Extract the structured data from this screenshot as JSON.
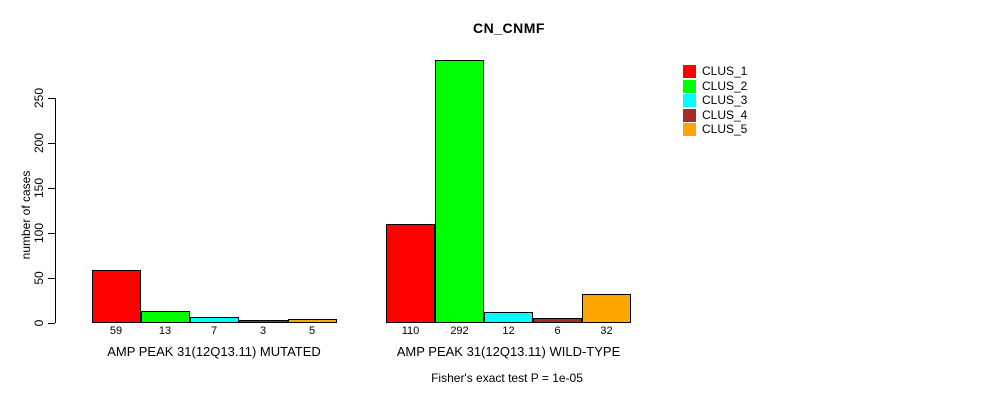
{
  "title": "CN_CNMF",
  "ylabel": "number of cases",
  "footer": "Fisher's exact test P = 1e-05",
  "chart_data": {
    "type": "bar",
    "title": "CN_CNMF",
    "xlabel": "",
    "ylabel": "number of cases",
    "categories": [
      "AMP PEAK 31(12Q13.11) MUTATED",
      "AMP PEAK 31(12Q13.11) WILD-TYPE"
    ],
    "series": [
      {
        "name": "CLUS_1",
        "color": "#FF0000",
        "values": [
          59,
          110
        ]
      },
      {
        "name": "CLUS_2",
        "color": "#00FF00",
        "values": [
          13,
          292
        ]
      },
      {
        "name": "CLUS_3",
        "color": "#00FFFF",
        "values": [
          7,
          12
        ]
      },
      {
        "name": "CLUS_4",
        "color": "#A52A2A",
        "values": [
          3,
          6
        ]
      },
      {
        "name": "CLUS_5",
        "color": "#FFA500",
        "values": [
          5,
          32
        ]
      }
    ],
    "yticks": [
      0,
      50,
      100,
      150,
      200,
      250
    ],
    "ylim": [
      0,
      295
    ],
    "bar_value_labels": true,
    "annotation": "Fisher's exact test P = 1e-05",
    "legend_position": "right",
    "grid": false,
    "background": "#ffffff"
  }
}
